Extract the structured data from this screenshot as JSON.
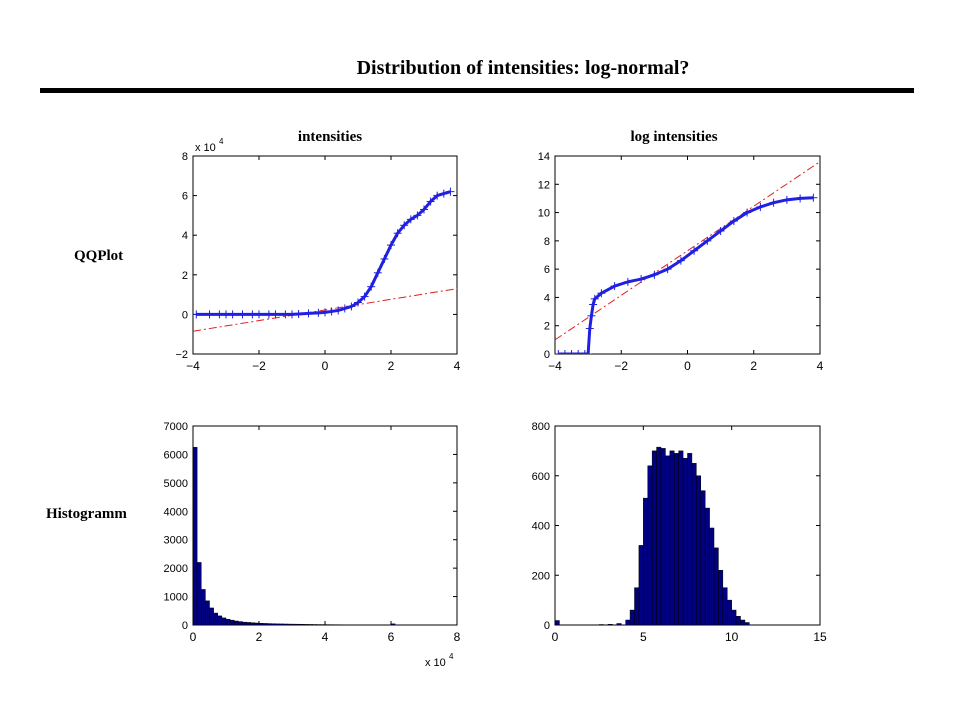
{
  "slide": {
    "title": "Distribution of intensities: log-normal?",
    "column_titles": [
      "intensities",
      "log intensities"
    ],
    "row_labels": [
      "QQPlot",
      "Histogramm"
    ]
  },
  "colors": {
    "marker": "#2020e0",
    "reference_line": "#e02020",
    "bar_fill": "#000080",
    "bar_edge": "#000000"
  },
  "chart_data": [
    {
      "id": "qq-intensities",
      "type": "scatter",
      "title": "intensities",
      "xlim": [
        -4,
        4
      ],
      "ylim": [
        -2,
        8
      ],
      "xticks": [
        -4,
        -2,
        0,
        2,
        4
      ],
      "yticks": [
        -2,
        0,
        2,
        4,
        6,
        8
      ],
      "xtick_labels": [
        "−4",
        "−2",
        "0",
        "2",
        "4"
      ],
      "ytick_labels": [
        "−2",
        "0",
        "2",
        "4",
        "6",
        "8"
      ],
      "y_exponent_label": "x 10",
      "exponent": "4",
      "marker": "+",
      "series": [
        {
          "values_xy": [
            [
              -3.9,
              0
            ],
            [
              -3.5,
              0
            ],
            [
              -3.2,
              0
            ],
            [
              -3,
              0
            ],
            [
              -2.8,
              0
            ],
            [
              -2.5,
              0
            ],
            [
              -2.2,
              0
            ],
            [
              -2,
              0
            ],
            [
              -1.7,
              0
            ],
            [
              -1.5,
              0
            ],
            [
              -1.2,
              0
            ],
            [
              -1,
              0
            ],
            [
              -0.8,
              0.02
            ],
            [
              -0.5,
              0.05
            ],
            [
              -0.2,
              0.08
            ],
            [
              0,
              0.1
            ],
            [
              0.2,
              0.15
            ],
            [
              0.4,
              0.2
            ],
            [
              0.6,
              0.3
            ],
            [
              0.8,
              0.4
            ],
            [
              1,
              0.6
            ],
            [
              1.2,
              0.9
            ],
            [
              1.4,
              1.4
            ],
            [
              1.6,
              2.1
            ],
            [
              1.8,
              2.8
            ],
            [
              2,
              3.5
            ],
            [
              2.2,
              4.1
            ],
            [
              2.4,
              4.5
            ],
            [
              2.6,
              4.8
            ],
            [
              2.8,
              5
            ],
            [
              3,
              5.3
            ],
            [
              3.2,
              5.7
            ],
            [
              3.4,
              6
            ],
            [
              3.6,
              6.1
            ],
            [
              3.8,
              6.2
            ]
          ]
        }
      ],
      "reference_line": [
        [
          -4,
          -0.85
        ],
        [
          4,
          1.3
        ]
      ]
    },
    {
      "id": "qq-log-intensities",
      "type": "scatter",
      "title": "log intensities",
      "xlim": [
        -4,
        4
      ],
      "ylim": [
        0,
        14
      ],
      "xticks": [
        -4,
        -2,
        0,
        2,
        4
      ],
      "yticks": [
        0,
        2,
        4,
        6,
        8,
        10,
        12,
        14
      ],
      "xtick_labels": [
        "−4",
        "−2",
        "0",
        "2",
        "4"
      ],
      "ytick_labels": [
        "0",
        "2",
        "4",
        "6",
        "8",
        "10",
        "12",
        "14"
      ],
      "marker": "+",
      "series": [
        {
          "values_xy": [
            [
              -3.9,
              0
            ],
            [
              -3.7,
              0
            ],
            [
              -3.5,
              0
            ],
            [
              -3.3,
              0
            ],
            [
              -3.1,
              0
            ],
            [
              -3,
              0
            ],
            [
              -2.95,
              1.8
            ],
            [
              -2.9,
              2.7
            ],
            [
              -2.85,
              3.5
            ],
            [
              -2.8,
              3.9
            ],
            [
              -2.6,
              4.3
            ],
            [
              -2.2,
              4.8
            ],
            [
              -1.8,
              5.1
            ],
            [
              -1.4,
              5.3
            ],
            [
              -1,
              5.6
            ],
            [
              -0.6,
              6
            ],
            [
              -0.2,
              6.6
            ],
            [
              0.2,
              7.3
            ],
            [
              0.6,
              8
            ],
            [
              1,
              8.7
            ],
            [
              1.4,
              9.4
            ],
            [
              1.8,
              10
            ],
            [
              2.2,
              10.4
            ],
            [
              2.6,
              10.7
            ],
            [
              3,
              10.9
            ],
            [
              3.4,
              11
            ],
            [
              3.8,
              11.05
            ]
          ]
        }
      ],
      "reference_line": [
        [
          -4,
          1
        ],
        [
          4,
          13.6
        ]
      ]
    },
    {
      "id": "hist-intensities",
      "type": "bar",
      "title": "",
      "xlim": [
        0,
        8
      ],
      "ylim": [
        0,
        7000
      ],
      "xticks": [
        0,
        2,
        4,
        6,
        8
      ],
      "yticks": [
        0,
        1000,
        2000,
        3000,
        4000,
        5000,
        6000,
        7000
      ],
      "xtick_labels": [
        "0",
        "2",
        "4",
        "6",
        "8"
      ],
      "ytick_labels": [
        "0",
        "1000",
        "2000",
        "3000",
        "4000",
        "5000",
        "6000",
        "7000"
      ],
      "x_exponent_label": "x 10",
      "exponent": "4",
      "bin_width": 0.125,
      "bin_starts": [
        0,
        0.125,
        0.25,
        0.375,
        0.5,
        0.625,
        0.75,
        0.875,
        1,
        1.125,
        1.25,
        1.375,
        1.5,
        1.625,
        1.75,
        1.875,
        2,
        2.125,
        2.25,
        2.375,
        2.5,
        2.625,
        2.75,
        2.875,
        3,
        3.125,
        3.25,
        3.375,
        3.5,
        3.625,
        3.75,
        3.875,
        4,
        4.125,
        4.25,
        4.375,
        4.5,
        4.625,
        4.75,
        4.875,
        5,
        5.125,
        5.25,
        5.375,
        5.5,
        5.625,
        5.75,
        5.875,
        6,
        6.125
      ],
      "values": [
        6250,
        2200,
        1250,
        850,
        600,
        420,
        320,
        250,
        200,
        170,
        140,
        120,
        100,
        90,
        80,
        70,
        60,
        55,
        50,
        45,
        40,
        38,
        35,
        32,
        30,
        28,
        25,
        22,
        20,
        18,
        16,
        15,
        14,
        12,
        11,
        10,
        9,
        8,
        8,
        7,
        6,
        6,
        5,
        5,
        4,
        4,
        4,
        3,
        40,
        3
      ]
    },
    {
      "id": "hist-log-intensities",
      "type": "bar",
      "title": "",
      "xlim": [
        0,
        15
      ],
      "ylim": [
        0,
        800
      ],
      "xticks": [
        0,
        5,
        10,
        15
      ],
      "yticks": [
        0,
        200,
        400,
        600,
        800
      ],
      "xtick_labels": [
        "0",
        "5",
        "10",
        "15"
      ],
      "ytick_labels": [
        "0",
        "200",
        "400",
        "600",
        "800"
      ],
      "bin_width": 0.25,
      "bin_starts": [
        0,
        2.5,
        3,
        3.5,
        4,
        4.25,
        4.5,
        4.75,
        5,
        5.25,
        5.5,
        5.75,
        6,
        6.25,
        6.5,
        6.75,
        7,
        7.25,
        7.5,
        7.75,
        8,
        8.25,
        8.5,
        8.75,
        9,
        9.25,
        9.5,
        9.75,
        10,
        10.25,
        10.5,
        10.75
      ],
      "values": [
        18,
        2,
        3,
        6,
        20,
        60,
        150,
        320,
        510,
        640,
        700,
        715,
        710,
        680,
        700,
        690,
        700,
        670,
        690,
        650,
        600,
        540,
        470,
        390,
        310,
        220,
        150,
        100,
        60,
        35,
        20,
        10
      ]
    }
  ]
}
